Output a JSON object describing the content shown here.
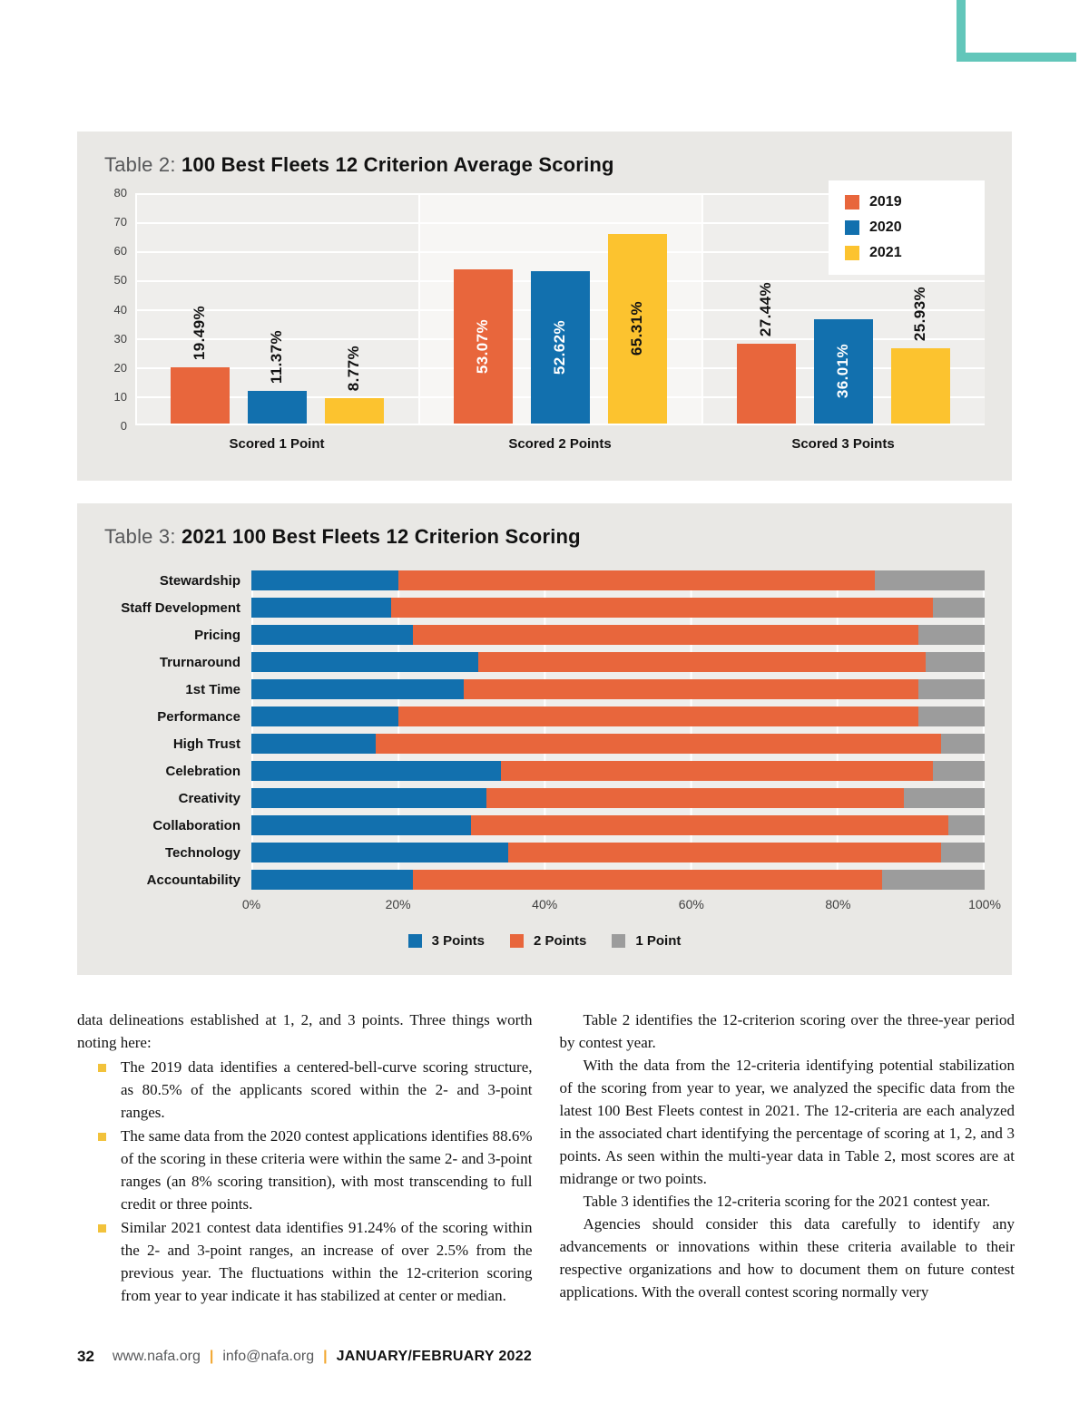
{
  "page": {
    "accent_teal": "#62C6BA",
    "footer": {
      "page_number": "32",
      "site": "www.nafa.org",
      "separator": "|",
      "email": "info@nafa.org",
      "issue": "JANUARY/FEBRUARY 2022"
    }
  },
  "chart_data": [
    {
      "type": "bar",
      "title_label": "Table 2:",
      "title": "100 Best Fleets 12 Criterion Average Scoring",
      "categories": [
        "Scored 1 Point",
        "Scored 2 Points",
        "Scored 3 Points"
      ],
      "series": [
        {
          "name": "2019",
          "color": "#E8663C",
          "values": [
            19.49,
            53.07,
            27.44
          ]
        },
        {
          "name": "2020",
          "color": "#1270AE",
          "values": [
            11.37,
            52.62,
            36.01
          ]
        },
        {
          "name": "2021",
          "color": "#FCC32F",
          "values": [
            8.77,
            65.31,
            25.93
          ]
        }
      ],
      "value_label_suffix": "%",
      "ylim": [
        0,
        80
      ],
      "y_ticks": [
        0,
        10,
        20,
        30,
        40,
        50,
        60,
        70,
        80
      ],
      "grid": true,
      "legend_position": "top-right"
    },
    {
      "type": "bar-horizontal-stacked",
      "title_label": "Table 3:",
      "title": "2021 100 Best Fleets 12 Criterion Scoring",
      "categories": [
        "Stewardship",
        "Staff Development",
        "Pricing",
        "Trurnaround",
        "1st Time",
        "Performance",
        "High Trust",
        "Celebration",
        "Creativity",
        "Collaboration",
        "Technology",
        "Accountability"
      ],
      "series": [
        {
          "name": "3 Points",
          "color": "#1270AE",
          "values": [
            20,
            19,
            22,
            31,
            29,
            20,
            17,
            34,
            32,
            30,
            35,
            22
          ]
        },
        {
          "name": "2 Points",
          "color": "#E8663C",
          "values": [
            65,
            74,
            69,
            61,
            62,
            71,
            77,
            59,
            57,
            65,
            59,
            64
          ]
        },
        {
          "name": "1 Point",
          "color": "#9C9C9C",
          "values": [
            15,
            7,
            9,
            8,
            9,
            9,
            6,
            7,
            11,
            5,
            6,
            14
          ]
        }
      ],
      "xlim": [
        0,
        100
      ],
      "x_ticks": [
        "0%",
        "20%",
        "40%",
        "60%",
        "80%",
        "100%"
      ],
      "grid": true,
      "legend_position": "bottom"
    }
  ],
  "body": {
    "left": {
      "intro": "data delineations established at 1, 2, and 3 points. Three things worth noting here:",
      "bullets": [
        "The 2019 data identifies a centered-bell-curve scoring structure, as 80.5% of the applicants scored within the 2- and 3-point ranges.",
        "The same data from the 2020 contest applications identifies 88.6% of the scoring in these criteria were within the same 2- and 3-point ranges (an 8% scoring transition), with most transcending to full credit or three points.",
        "Similar 2021 contest data identifies 91.24% of the scoring within the 2- and 3-point ranges, an increase of over 2.5% from the previous year. The fluctuations within the 12-criterion scoring from year to year indicate it has stabilized at center or median."
      ]
    },
    "right": {
      "paragraphs": [
        "Table 2 identifies the 12-criterion scoring over the three-year period by contest year.",
        "With the data from the 12-criteria identifying potential stabilization of the scoring from year to year, we analyzed the specific data from the latest 100 Best Fleets contest in 2021. The 12-criteria are each analyzed in the associated chart identifying the percentage of scoring at 1, 2, and 3 points. As seen within the multi-year data in Table 2, most scores are at midrange or two points.",
        "Table 3 identifies the 12-criteria scoring for the 2021 contest year.",
        "Agencies should consider this data carefully to identify any advancements or innovations within these criteria available to their respective organizations and how to document them on future contest applications. With the overall contest scoring normally very"
      ]
    }
  }
}
